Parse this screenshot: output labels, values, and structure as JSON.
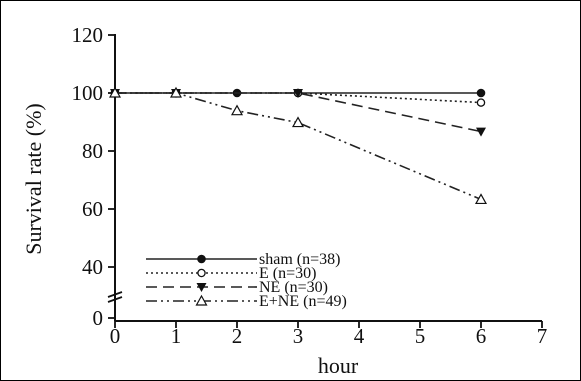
{
  "chart_data": {
    "type": "line",
    "title": "",
    "xlabel": "hour",
    "ylabel": "Survival rate (%)",
    "xlim": [
      0,
      7
    ],
    "ylim": [
      0,
      120
    ],
    "axis_break": true,
    "xticks": [
      "0",
      "1",
      "2",
      "3",
      "4",
      "5",
      "6",
      "7"
    ],
    "yticks": [
      "0",
      "40",
      "60",
      "80",
      "100",
      "120"
    ],
    "legend_position": "bottom-left",
    "grid": false,
    "series": [
      {
        "name": "sham (n=38)",
        "marker": "filled-circle",
        "line": "solid",
        "points": [
          [
            0,
            100
          ],
          [
            1,
            100
          ],
          [
            2,
            100
          ],
          [
            3,
            100
          ],
          [
            6,
            100
          ]
        ]
      },
      {
        "name": "E (n=30)",
        "marker": "open-circle",
        "line": "dotted",
        "points": [
          [
            0,
            100
          ],
          [
            1,
            100
          ],
          [
            3,
            100
          ],
          [
            6,
            96.7
          ]
        ]
      },
      {
        "name": "NE (n=30)",
        "marker": "filled-triangle-down",
        "line": "dashed",
        "points": [
          [
            0,
            100
          ],
          [
            1,
            100
          ],
          [
            3,
            100
          ],
          [
            6,
            86.7
          ]
        ]
      },
      {
        "name": "E+NE (n=49)",
        "marker": "open-triangle-up",
        "line": "dash-dot-dot",
        "points": [
          [
            0,
            100
          ],
          [
            1,
            100
          ],
          [
            2,
            93.9
          ],
          [
            3,
            89.8
          ],
          [
            6,
            63.3
          ]
        ]
      }
    ]
  }
}
